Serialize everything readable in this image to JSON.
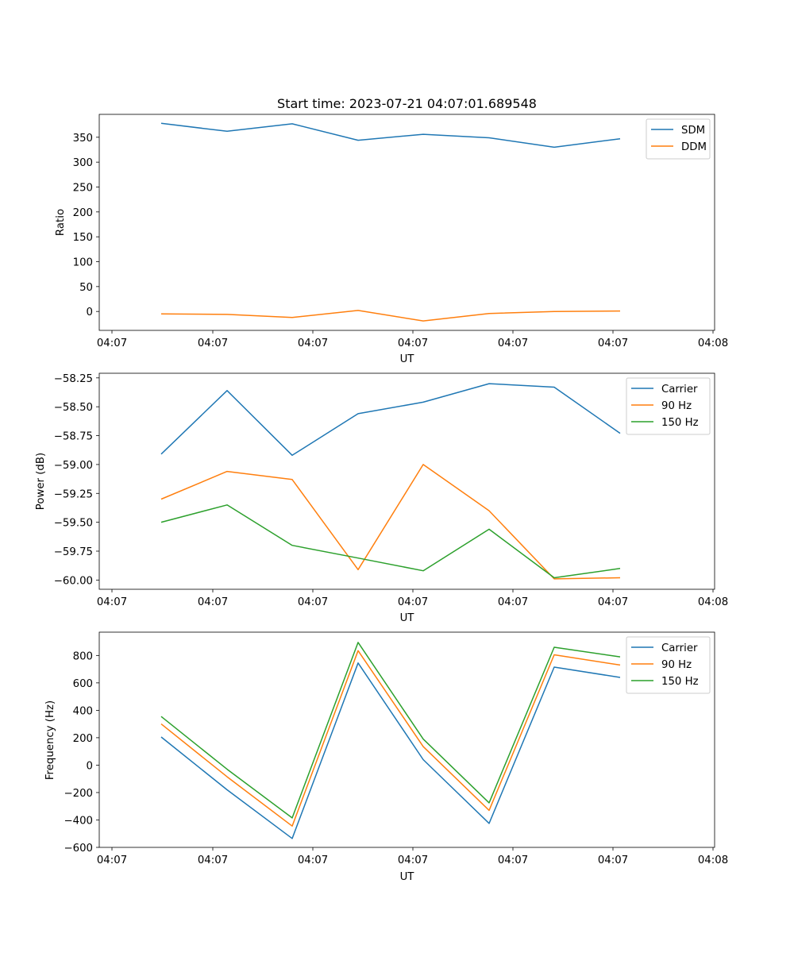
{
  "chart_data": [
    {
      "type": "line",
      "title": "Start time: 2023-07-21 04:07:01.689548",
      "xlabel": "UT",
      "ylabel": "Ratio",
      "x_ticks": [
        "04:07",
        "04:07",
        "04:07",
        "04:07",
        "04:07",
        "04:07",
        "04:08"
      ],
      "y_ticks": [
        "0",
        "50",
        "100",
        "150",
        "200",
        "250",
        "300",
        "350"
      ],
      "ylim": [
        -38,
        396
      ],
      "legend": "top-right",
      "series": [
        {
          "name": "SDM",
          "color": "#1f77b4",
          "values": [
            378,
            362,
            377,
            344,
            356,
            349,
            330,
            347
          ]
        },
        {
          "name": "DDM",
          "color": "#ff7f0e",
          "values": [
            -5,
            -6,
            -12,
            2,
            -19,
            -4,
            0,
            1
          ]
        }
      ]
    },
    {
      "type": "line",
      "title": "",
      "xlabel": "UT",
      "ylabel": "Power (dB)",
      "x_ticks": [
        "04:07",
        "04:07",
        "04:07",
        "04:07",
        "04:07",
        "04:07",
        "04:08"
      ],
      "y_ticks": [
        "−58.25",
        "−58.50",
        "−58.75",
        "−59.00",
        "−59.25",
        "−59.50",
        "−59.75",
        "−60.00"
      ],
      "ylim": [
        -60.08,
        -58.21
      ],
      "legend": "top-right",
      "series": [
        {
          "name": "Carrier",
          "color": "#1f77b4",
          "values": [
            -58.91,
            -58.36,
            -58.92,
            -58.56,
            -58.46,
            -58.3,
            -58.33,
            -58.73
          ]
        },
        {
          "name": "90 Hz",
          "color": "#ff7f0e",
          "values": [
            -59.3,
            -59.06,
            -59.13,
            -59.91,
            -59.0,
            -59.4,
            -59.99,
            -59.98
          ]
        },
        {
          "name": "150 Hz",
          "color": "#2ca02c",
          "values": [
            -59.5,
            -59.35,
            -59.7,
            -59.81,
            -59.92,
            -59.56,
            -59.98,
            -59.9
          ]
        }
      ]
    },
    {
      "type": "line",
      "title": "",
      "xlabel": "UT",
      "ylabel": "Frequency (Hz)",
      "x_ticks": [
        "04:07",
        "04:07",
        "04:07",
        "04:07",
        "04:07",
        "04:07",
        "04:08"
      ],
      "y_ticks": [
        "−600",
        "−400",
        "−200",
        "0",
        "200",
        "400",
        "600",
        "800"
      ],
      "ylim": [
        -600,
        970
      ],
      "legend": "top-right",
      "series": [
        {
          "name": "Carrier",
          "color": "#1f77b4",
          "values": [
            205,
            -180,
            -535,
            745,
            40,
            -425,
            715,
            640
          ]
        },
        {
          "name": "90 Hz",
          "color": "#ff7f0e",
          "values": [
            300,
            -85,
            -445,
            835,
            135,
            -330,
            805,
            730
          ]
        },
        {
          "name": "150 Hz",
          "color": "#2ca02c",
          "values": [
            355,
            -30,
            -385,
            895,
            190,
            -275,
            860,
            790
          ]
        }
      ]
    }
  ]
}
